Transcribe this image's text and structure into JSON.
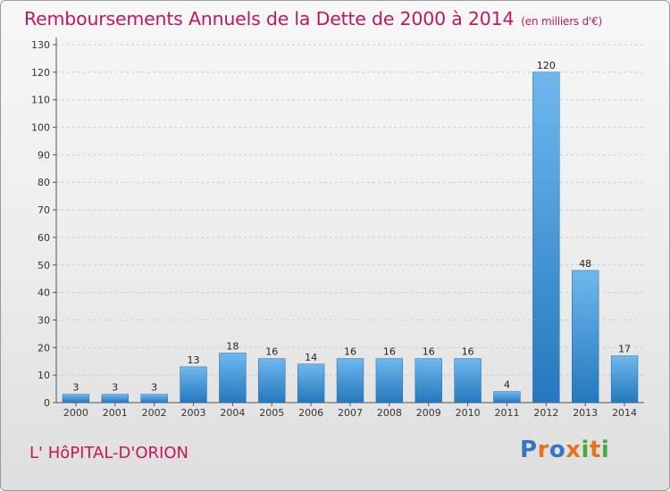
{
  "header": {
    "title": "Remboursements Annuels de la Dette de 2000 à 2014",
    "unit": "(en milliers d'€)"
  },
  "footer": {
    "town": "L' HôPITAL-D'ORION",
    "logo": "Proxiti"
  },
  "colors": {
    "title": "#c2185b",
    "bar_light": "#6fb8ee",
    "bar_dark": "#2478bd",
    "logo_letters": [
      "#3b73c4",
      "#e8731e",
      "#3b73c4",
      "#e8731e",
      "#4aa83c",
      "#e8731e",
      "#4aa83c"
    ]
  },
  "chart_data": {
    "type": "bar",
    "title": "Remboursements Annuels de la Dette de 2000 à 2014",
    "categories": [
      "2000",
      "2001",
      "2002",
      "2003",
      "2004",
      "2005",
      "2006",
      "2007",
      "2008",
      "2009",
      "2010",
      "2011",
      "2012",
      "2013",
      "2014"
    ],
    "values": [
      3,
      3,
      3,
      13,
      18,
      16,
      14,
      16,
      16,
      16,
      16,
      4,
      120,
      48,
      17
    ],
    "ylim": [
      0,
      130
    ],
    "yticks": [
      0,
      10,
      20,
      30,
      40,
      50,
      60,
      70,
      80,
      90,
      100,
      110,
      120,
      130
    ],
    "grid": true,
    "data_labels": true
  }
}
